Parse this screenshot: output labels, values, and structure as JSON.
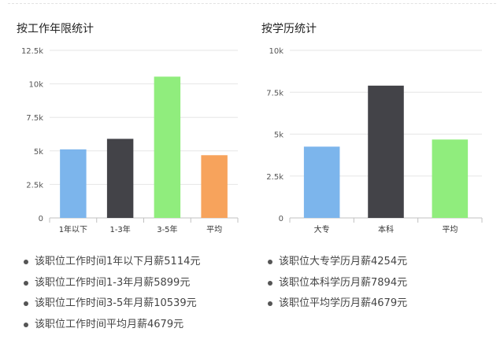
{
  "chart_data": [
    {
      "type": "bar",
      "title": "按工作年限统计",
      "categories": [
        "1年以下",
        "1-3年",
        "3-5年",
        "平均"
      ],
      "values": [
        5114,
        5899,
        10539,
        4679
      ],
      "colors": [
        "#7cb5ec",
        "#434348",
        "#90ed7d",
        "#f7a35c"
      ],
      "ylim": [
        0,
        12500
      ],
      "yticks": [
        0,
        2500,
        5000,
        7500,
        10000,
        12500
      ],
      "ytick_labels": [
        "0",
        "2.5k",
        "5k",
        "7.5k",
        "10k",
        "12.5k"
      ],
      "grid": true,
      "legend": "none"
    },
    {
      "type": "bar",
      "title": "按学历统计",
      "categories": [
        "大专",
        "本科",
        "平均"
      ],
      "values": [
        4254,
        7894,
        4679
      ],
      "colors": [
        "#7cb5ec",
        "#434348",
        "#90ed7d"
      ],
      "ylim": [
        0,
        10000
      ],
      "yticks": [
        0,
        2500,
        5000,
        7500,
        10000
      ],
      "ytick_labels": [
        "0",
        "2.5k",
        "5k",
        "7.5k",
        "10k"
      ],
      "grid": true,
      "legend": "none"
    }
  ],
  "notes_left": [
    "该职位工作时间1年以下月薪5114元",
    "该职位工作时间1-3年月薪5899元",
    "该职位工作时间3-5年月薪10539元",
    "该职位工作时间平均月薪4679元"
  ],
  "notes_right": [
    "该职位大专学历月薪4254元",
    "该职位本科学历月薪7894元",
    "该职位平均学历月薪4679元"
  ]
}
